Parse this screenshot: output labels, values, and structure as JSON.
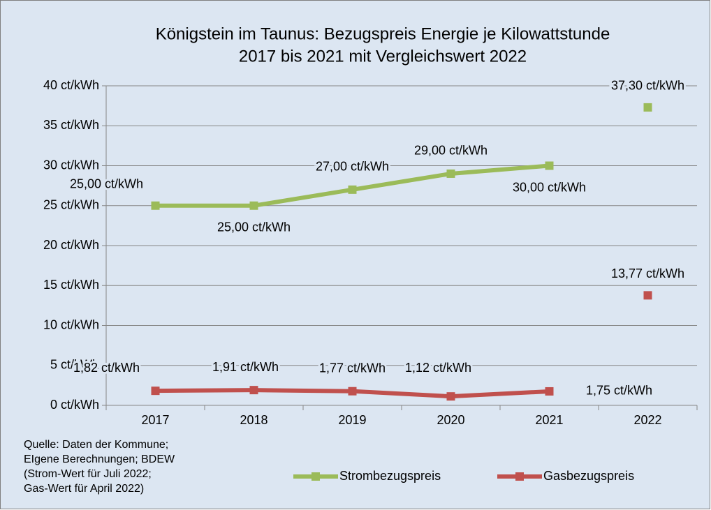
{
  "chart_data": {
    "type": "line",
    "title": [
      "Königstein im Taunus: Bezugspreis Energie je Kilowattstunde",
      "2017 bis 2021 mit Vergleichswert 2022"
    ],
    "categories": [
      "2017",
      "2018",
      "2019",
      "2020",
      "2021",
      "2022"
    ],
    "series": [
      {
        "name": "Strombezugspreis",
        "color": "#9bbb59",
        "values": [
          25,
          25,
          27,
          29,
          30,
          37.3
        ],
        "value_labels": [
          "25,00 ct/kWh",
          "25,00 ct/kWh",
          "27,00 ct/kWh",
          "29,00 ct/kWh",
          "30,00 ct/kWh",
          "37,30 ct/kWh"
        ],
        "last_point_unconnected": true
      },
      {
        "name": "Gasbezugspreis",
        "color": "#c0504d",
        "values": [
          1.82,
          1.91,
          1.77,
          1.12,
          1.75,
          13.77
        ],
        "value_labels": [
          "1,82 ct/kWh",
          "1,91 ct/kWh",
          "1,77 ct/kWh",
          "1,12 ct/kWh",
          "1,75 ct/kWh",
          "13,77 ct/kWh"
        ],
        "last_point_unconnected": true
      }
    ],
    "ylim": [
      0,
      40
    ],
    "yticks": [
      {
        "value": 0,
        "label": "0 ct/kWh"
      },
      {
        "value": 5,
        "label": "5 ct/kWh"
      },
      {
        "value": 10,
        "label": "10 ct/kWh"
      },
      {
        "value": 15,
        "label": "15 ct/kWh"
      },
      {
        "value": 20,
        "label": "20 ct/kWh"
      },
      {
        "value": 25,
        "label": "25 ct/kWh"
      },
      {
        "value": 30,
        "label": "30 ct/kWh"
      },
      {
        "value": 35,
        "label": "35 ct/kWh"
      },
      {
        "value": 40,
        "label": "40 ct/kWh"
      }
    ],
    "grid": true,
    "legend": "bottom",
    "source": [
      "Quelle: Daten der Kommune;",
      "EIgene Berechnungen; BDEW",
      "(Strom-Wert für Juli 2022;",
      "Gas-Wert für April 2022)"
    ]
  }
}
